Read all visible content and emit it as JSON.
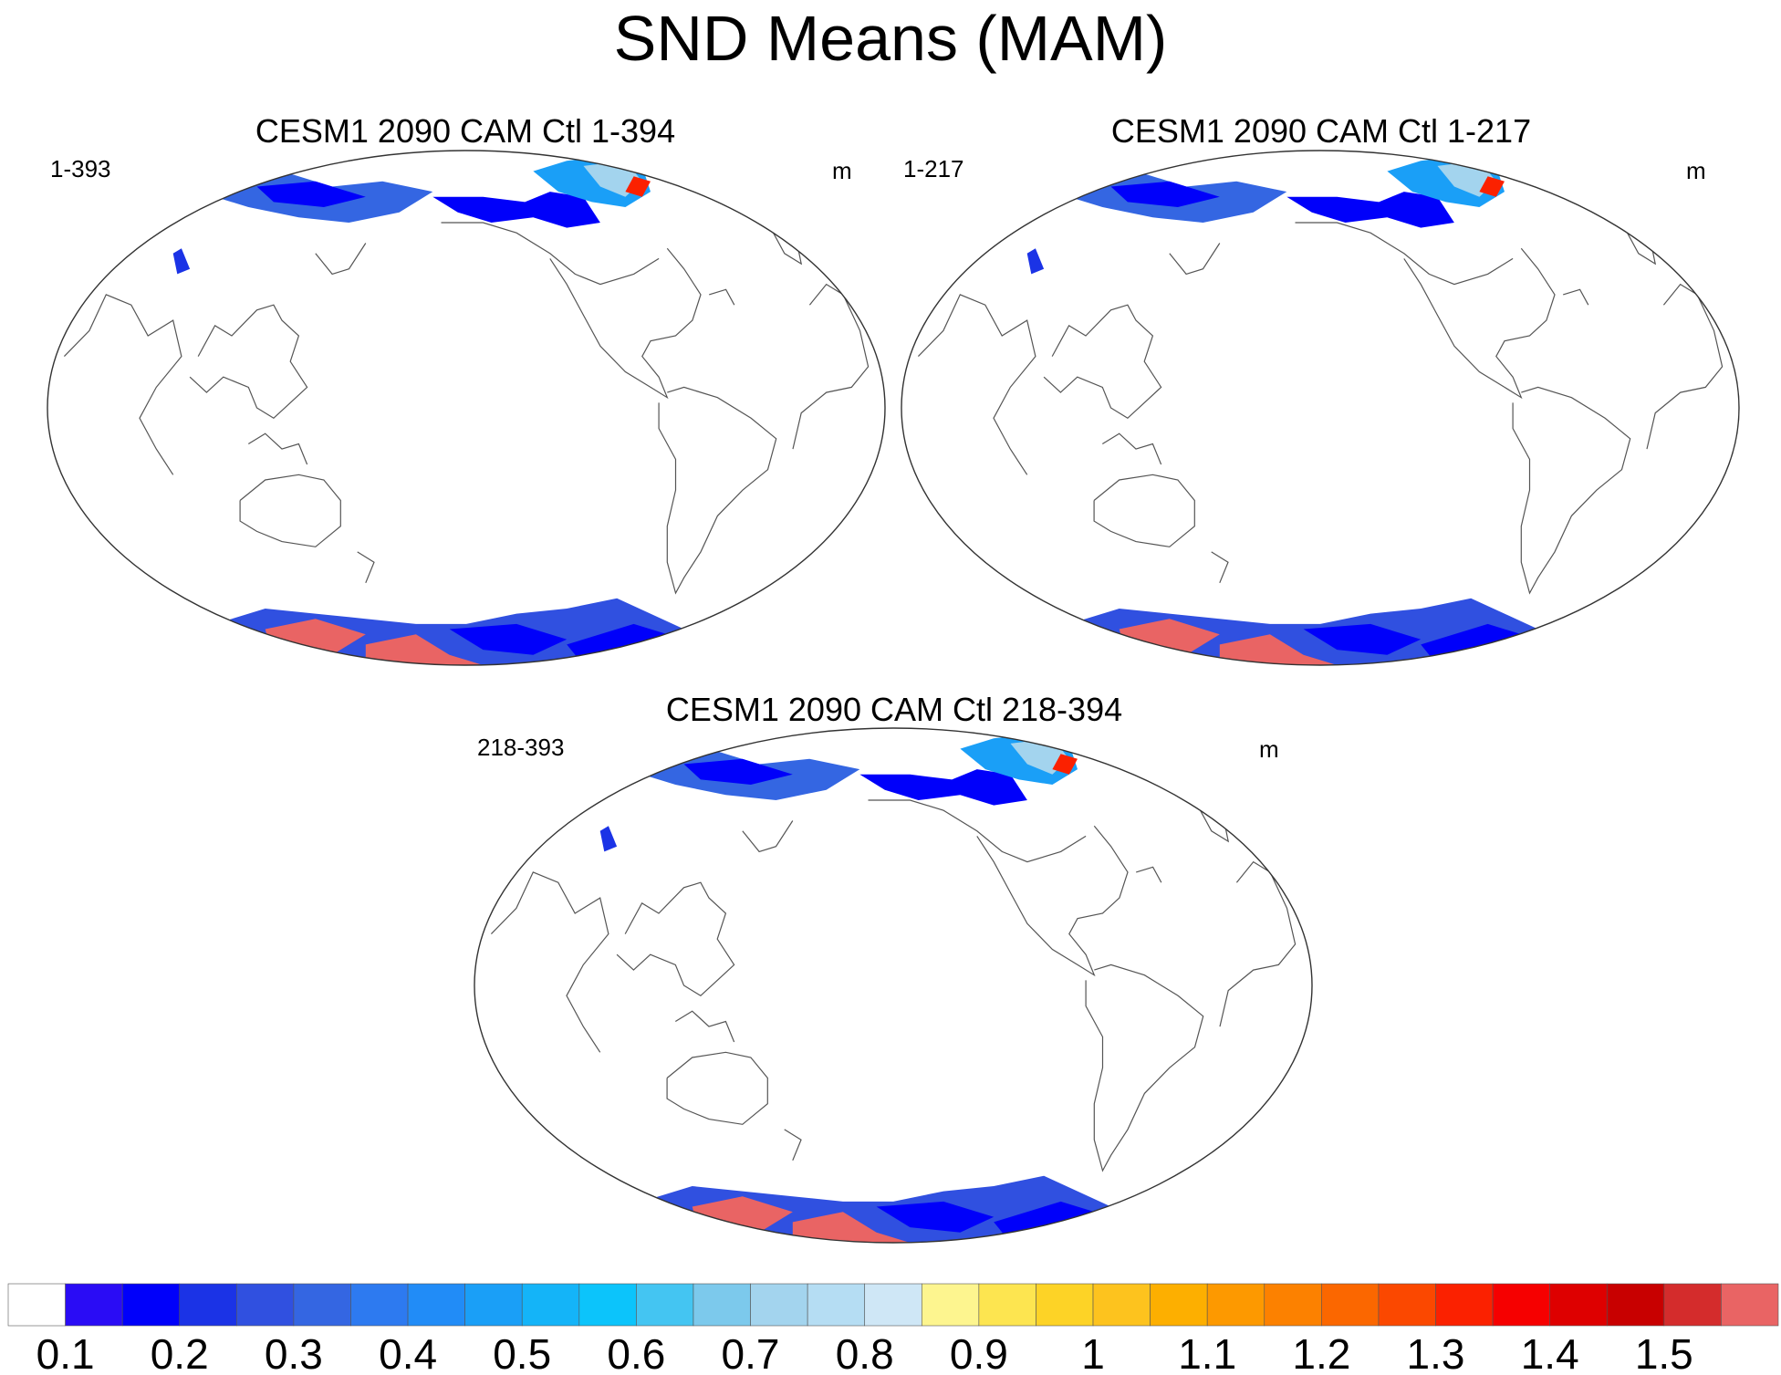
{
  "figure": {
    "title": "SND Means (MAM)"
  },
  "chart_data": [
    {
      "type": "heatmap",
      "projection": "world map, Pacific-centered",
      "title": "CESM1 2090 CAM Ctl 1-394",
      "left_label": "1-393",
      "units": "m",
      "variable": "SND",
      "season": "MAM"
    },
    {
      "type": "heatmap",
      "projection": "world map, Pacific-centered",
      "title": "CESM1 2090 CAM Ctl 1-217",
      "left_label": "1-217",
      "units": "m",
      "variable": "SND",
      "season": "MAM"
    },
    {
      "type": "heatmap",
      "projection": "world map, Pacific-centered",
      "title": "CESM1 2090 CAM Ctl 218-394",
      "left_label": "218-393",
      "units": "m",
      "variable": "SND",
      "season": "MAM"
    }
  ],
  "colorbar": {
    "labels": [
      "0.1",
      "0.2",
      "0.3",
      "0.4",
      "0.5",
      "0.6",
      "0.7",
      "0.8",
      "0.9",
      "1",
      "1.1",
      "1.2",
      "1.3",
      "1.4",
      "1.5"
    ],
    "colors": [
      "#ffffff",
      "#2a0cf5",
      "#0000fa",
      "#1b33e6",
      "#3050e0",
      "#3466e2",
      "#2d7af0",
      "#218cf7",
      "#1a9ff7",
      "#14b4f8",
      "#0cc4fb",
      "#44c5f2",
      "#7cc9ec",
      "#a3d4ee",
      "#b5ddf3",
      "#cfe7f6",
      "#fdf58f",
      "#fde550",
      "#fdd326",
      "#fdc31e",
      "#fdaf00",
      "#fd9900",
      "#fc8100",
      "#fb6700",
      "#fb4800",
      "#fb2100",
      "#f60000",
      "#de0000",
      "#c80000",
      "#d42c2c",
      "#e96464"
    ]
  }
}
